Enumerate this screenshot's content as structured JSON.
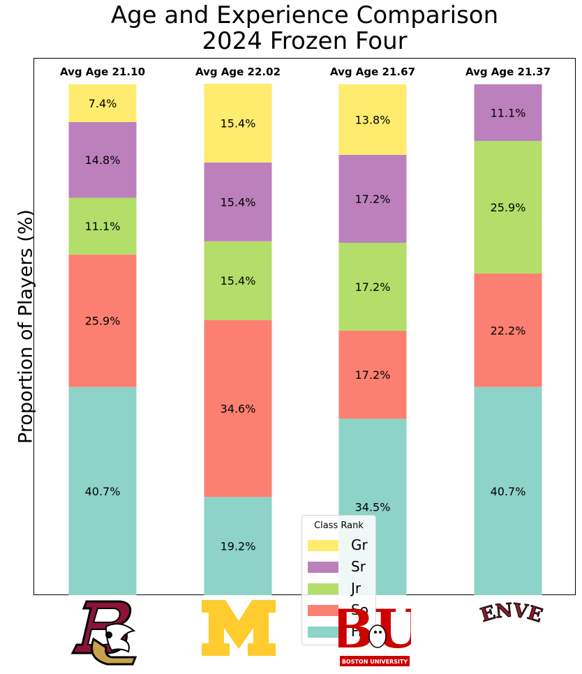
{
  "title_lines": [
    "Age and Experience Comparison",
    "2024 Frozen Four"
  ],
  "ylabel": "Proportion of Players (%)",
  "legend": {
    "title": "Class Rank",
    "items": [
      {
        "label": "Gr",
        "color": "#ffeb6e"
      },
      {
        "label": "Sr",
        "color": "#bc80bd"
      },
      {
        "label": "Jr",
        "color": "#b3de69"
      },
      {
        "label": "So",
        "color": "#fb8072"
      },
      {
        "label": "Fr",
        "color": "#8dd3c7"
      }
    ]
  },
  "teams": [
    {
      "avg_age_label": "Avg Age 21.10",
      "logo": "boston-college-logo"
    },
    {
      "avg_age_label": "Avg Age 22.02",
      "logo": "michigan-logo"
    },
    {
      "avg_age_label": "Avg Age 21.67",
      "logo": "boston-university-logo",
      "logo_text": {
        "big": "BU",
        "banner": "BOSTON UNIVERSITY"
      }
    },
    {
      "avg_age_label": "Avg Age 21.37",
      "logo": "denver-logo",
      "logo_text": {
        "big": "DENVER"
      }
    }
  ],
  "chart_data": {
    "type": "bar",
    "stacked": true,
    "title": "Age and Experience Comparison 2024 Frozen Four",
    "ylabel": "Proportion of Players (%)",
    "ylim": [
      0,
      100
    ],
    "categories": [
      "Boston College",
      "Michigan",
      "Boston University",
      "Denver"
    ],
    "avg_age": [
      21.1,
      22.02,
      21.67,
      21.37
    ],
    "series": [
      {
        "name": "Fr",
        "color": "#8dd3c7",
        "values": [
          40.7,
          19.2,
          34.5,
          40.7
        ],
        "labels": [
          "40.7%",
          "19.2%",
          "34.5%",
          "40.7%"
        ]
      },
      {
        "name": "So",
        "color": "#fb8072",
        "values": [
          25.9,
          34.6,
          17.2,
          22.2
        ],
        "labels": [
          "25.9%",
          "34.6%",
          "17.2%",
          "22.2%"
        ]
      },
      {
        "name": "Jr",
        "color": "#b3de69",
        "values": [
          11.1,
          15.4,
          17.2,
          25.9
        ],
        "labels": [
          "11.1%",
          "15.4%",
          "17.2%",
          "25.9%"
        ]
      },
      {
        "name": "Sr",
        "color": "#bc80bd",
        "values": [
          14.8,
          15.4,
          17.2,
          11.1
        ],
        "labels": [
          "14.8%",
          "15.4%",
          "17.2%",
          "11.1%"
        ]
      },
      {
        "name": "Gr",
        "color": "#ffeb6e",
        "values": [
          7.4,
          15.4,
          13.8,
          0
        ],
        "labels": [
          "7.4%",
          "15.4%",
          "13.8%",
          ""
        ]
      }
    ],
    "grid": false,
    "legend_position": "bottom-center"
  }
}
